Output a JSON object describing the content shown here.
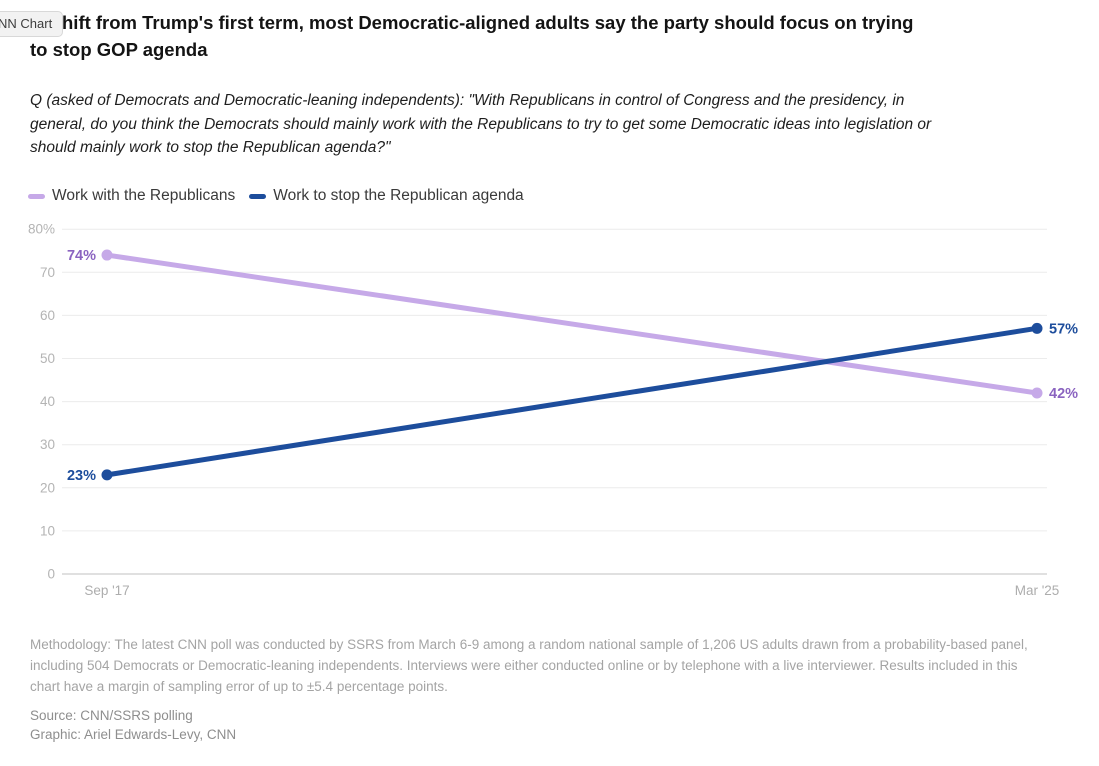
{
  "badge": {
    "label": "NN Chart"
  },
  "header": {
    "title_line1": "hift from Trump's first term, most Democratic-aligned adults say the party should focus on trying",
    "title_line2": "to stop GOP agenda",
    "question_lines": [
      "Q (asked of Democrats and Democratic-leaning independents): \"With Republicans in control of Congress and the presidency, in",
      "general, do you think the Democrats should mainly work with the Republicans to try to get some Democratic ideas into legislation or",
      "should mainly work to stop the Republican agenda?\""
    ]
  },
  "legend": {
    "items": [
      {
        "label": "Work with the Republicans",
        "color": "#c6a9e8"
      },
      {
        "label": "Work to stop the Republican agenda",
        "color": "#1d4d9c"
      }
    ]
  },
  "chart_data": {
    "type": "line",
    "x": [
      "Sep '17",
      "Mar '25"
    ],
    "series": [
      {
        "name": "Work with the Republicans",
        "values": [
          74,
          42
        ],
        "color": "#c6a9e8",
        "label_color": "#8a63c0",
        "point_labels": [
          "74%",
          "42%"
        ]
      },
      {
        "name": "Work to stop the Republican agenda",
        "values": [
          23,
          57
        ],
        "color": "#1d4d9c",
        "label_color": "#1d4d9c",
        "point_labels": [
          "23%",
          "57%"
        ]
      }
    ],
    "ylim": [
      0,
      80
    ],
    "ytick_step": 10,
    "ytick_labels": [
      "0",
      "10",
      "20",
      "30",
      "40",
      "50",
      "60",
      "70",
      "80%"
    ],
    "grid": true,
    "legend_position": "top",
    "colors": {
      "gridline": "#ececec",
      "baseline": "#c2c2c2",
      "ytick_text": "#b4b4b4",
      "xtick_text": "#adadad"
    }
  },
  "footer": {
    "methodology_lines": [
      "Methodology: The latest CNN poll was conducted by SSRS from March 6-9 among a random national sample of 1,206 US adults drawn from a probability-based panel,",
      "including 504 Democrats or Democratic-leaning independents. Interviews were either conducted online or by telephone with a live interviewer. Results included in this",
      "chart have a margin of sampling error of up to ±5.4 percentage points."
    ],
    "source": "Source: CNN/SSRS polling",
    "graphic": "Graphic: Ariel Edwards-Levy, CNN"
  }
}
